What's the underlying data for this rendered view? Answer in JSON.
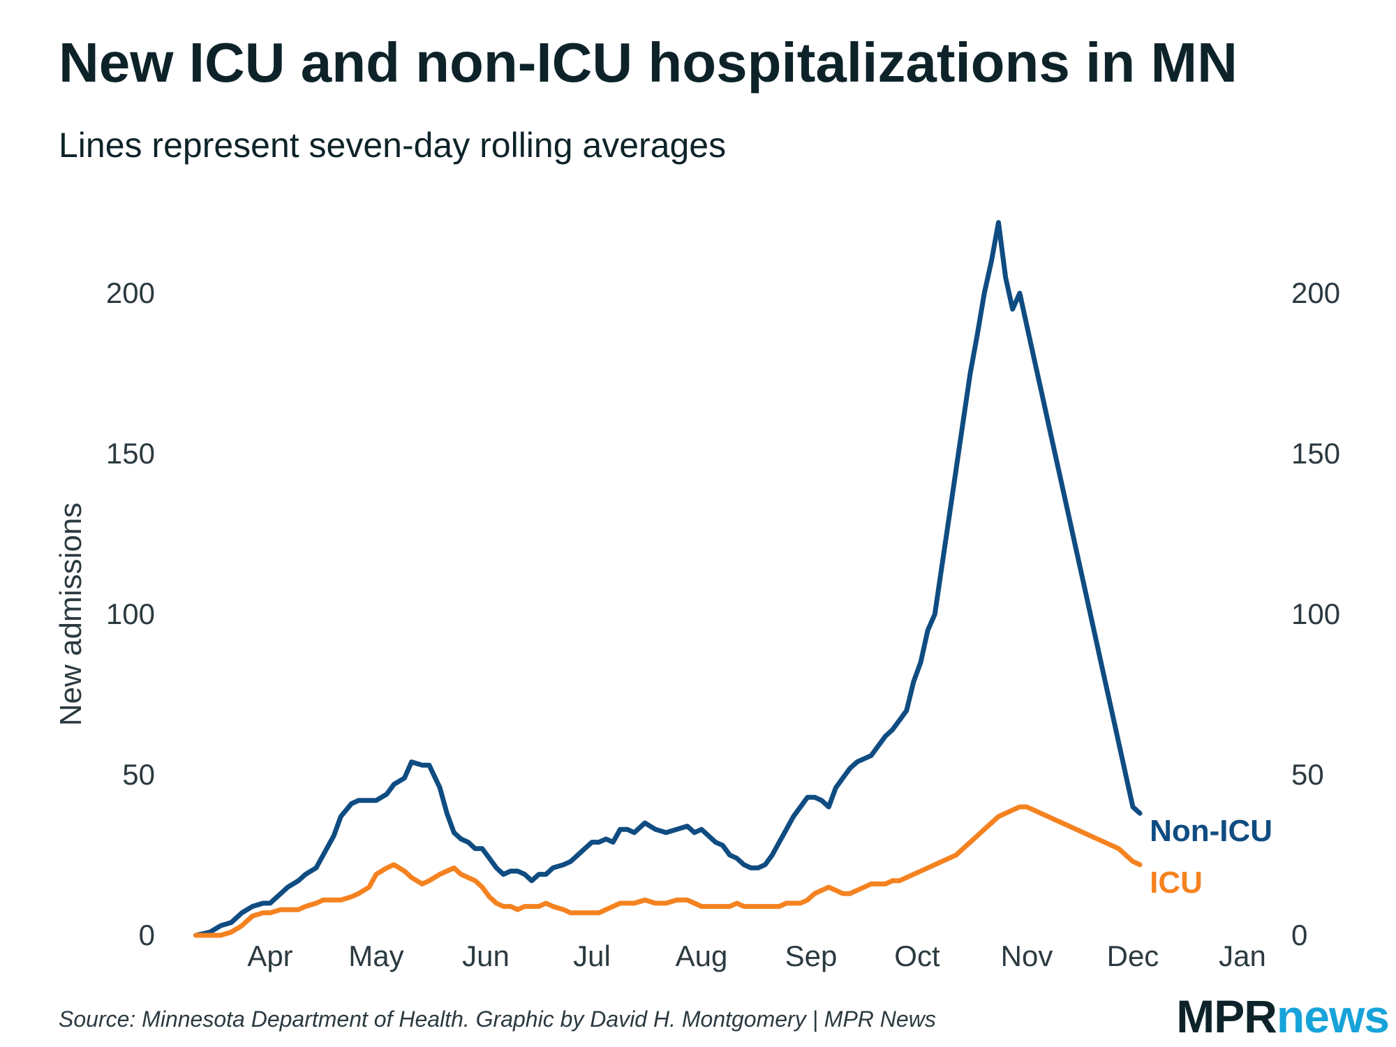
{
  "title": "New ICU and non-ICU hospitalizations in MN",
  "subtitle": "Lines represent seven-day rolling averages",
  "source": "Source: Minnesota Department of Health. Graphic by David H. Montgomery | MPR News",
  "logo": {
    "part1": "MPR",
    "part2": "news"
  },
  "colors": {
    "non_icu": "#0f4c81",
    "icu": "#f58220",
    "text": "#0d2329",
    "logo_accent": "#16a3d9"
  },
  "chart_data": {
    "type": "line",
    "title": "New ICU and non-ICU hospitalizations in MN",
    "subtitle": "Lines represent seven-day rolling averages",
    "ylabel": "New admissions",
    "xlabel": "",
    "ylim": [
      0,
      200
    ],
    "yticks": [
      0,
      50,
      100,
      150,
      200
    ],
    "x_ticks": [
      {
        "label": "Apr",
        "day": 0
      },
      {
        "label": "May",
        "day": 30
      },
      {
        "label": "Jun",
        "day": 61
      },
      {
        "label": "Jul",
        "day": 91
      },
      {
        "label": "Aug",
        "day": 122
      },
      {
        "label": "Sep",
        "day": 153
      },
      {
        "label": "Oct",
        "day": 183
      },
      {
        "label": "Nov",
        "day": 214
      },
      {
        "label": "Dec",
        "day": 244
      },
      {
        "label": "Jan",
        "day": 275
      }
    ],
    "xlim": [
      -21,
      280
    ],
    "legend": "direct labels at line ends",
    "series": [
      {
        "name": "Non-ICU",
        "x": [
          -21,
          -17,
          -14,
          -11,
          -8,
          -5,
          -2,
          0,
          3,
          5,
          8,
          10,
          13,
          15,
          18,
          20,
          23,
          25,
          28,
          30,
          33,
          35,
          38,
          40,
          43,
          45,
          48,
          50,
          52,
          54,
          56,
          58,
          60,
          62,
          64,
          66,
          68,
          70,
          72,
          74,
          76,
          78,
          80,
          83,
          85,
          87,
          89,
          91,
          93,
          95,
          97,
          99,
          101,
          103,
          106,
          109,
          112,
          115,
          118,
          120,
          122,
          124,
          126,
          128,
          130,
          132,
          134,
          136,
          138,
          140,
          142,
          144,
          146,
          148,
          150,
          152,
          154,
          156,
          158,
          160,
          162,
          164,
          166,
          168,
          170,
          172,
          174,
          176,
          178,
          180,
          182,
          184,
          186,
          188,
          190,
          192,
          194,
          196,
          198,
          200,
          202,
          204,
          206,
          208,
          210,
          212,
          214,
          216,
          218,
          220,
          222,
          224,
          226,
          228,
          230,
          232,
          234,
          236,
          238,
          240,
          241,
          242,
          243,
          244,
          246
        ],
        "values": [
          0,
          1,
          3,
          4,
          7,
          9,
          10,
          10,
          13,
          15,
          17,
          19,
          21,
          25,
          31,
          37,
          41,
          42,
          42,
          42,
          44,
          47,
          49,
          54,
          53,
          53,
          46,
          38,
          32,
          30,
          29,
          27,
          27,
          24,
          21,
          19,
          20,
          20,
          19,
          17,
          19,
          19,
          21,
          22,
          23,
          25,
          27,
          29,
          29,
          30,
          29,
          33,
          33,
          32,
          35,
          33,
          32,
          33,
          34,
          32,
          33,
          31,
          29,
          28,
          25,
          24,
          22,
          21,
          21,
          22,
          25,
          29,
          33,
          37,
          40,
          43,
          43,
          42,
          40,
          46,
          49,
          52,
          54,
          55,
          56,
          59,
          62,
          64,
          67,
          70,
          79,
          85,
          95,
          100,
          115,
          130,
          145,
          160,
          175,
          187,
          200,
          210,
          222,
          205,
          195,
          200,
          190,
          180,
          170,
          160,
          150,
          140,
          130,
          120,
          110,
          100,
          90,
          80,
          70,
          60,
          55,
          50,
          45,
          40,
          38
        ],
        "note": "x is days since Apr 1; values in admissions per day"
      },
      {
        "name": "ICU",
        "x": [
          -21,
          -17,
          -14,
          -11,
          -8,
          -5,
          -2,
          0,
          3,
          5,
          8,
          10,
          13,
          15,
          18,
          20,
          23,
          25,
          28,
          30,
          33,
          35,
          38,
          40,
          43,
          45,
          48,
          50,
          52,
          54,
          56,
          58,
          60,
          62,
          64,
          66,
          68,
          70,
          72,
          74,
          76,
          78,
          80,
          83,
          85,
          87,
          89,
          91,
          93,
          95,
          97,
          99,
          101,
          103,
          106,
          109,
          112,
          115,
          118,
          120,
          122,
          124,
          126,
          128,
          130,
          132,
          134,
          136,
          138,
          140,
          142,
          144,
          146,
          148,
          150,
          152,
          154,
          156,
          158,
          160,
          162,
          164,
          166,
          168,
          170,
          172,
          174,
          176,
          178,
          180,
          182,
          184,
          186,
          188,
          190,
          192,
          194,
          196,
          198,
          200,
          202,
          204,
          206,
          208,
          210,
          212,
          214,
          216,
          218,
          220,
          222,
          224,
          226,
          228,
          230,
          232,
          234,
          236,
          238,
          240,
          241,
          242,
          243,
          244,
          246
        ],
        "values": [
          0,
          0,
          0,
          1,
          3,
          6,
          7,
          7,
          8,
          8,
          8,
          9,
          10,
          11,
          11,
          11,
          12,
          13,
          15,
          19,
          21,
          22,
          20,
          18,
          16,
          17,
          19,
          20,
          21,
          19,
          18,
          17,
          15,
          12,
          10,
          9,
          9,
          8,
          9,
          9,
          9,
          10,
          9,
          8,
          7,
          7,
          7,
          7,
          7,
          8,
          9,
          10,
          10,
          10,
          11,
          10,
          10,
          11,
          11,
          10,
          9,
          9,
          9,
          9,
          9,
          10,
          9,
          9,
          9,
          9,
          9,
          9,
          10,
          10,
          10,
          11,
          13,
          14,
          15,
          14,
          13,
          13,
          14,
          15,
          16,
          16,
          16,
          17,
          17,
          18,
          19,
          20,
          21,
          22,
          23,
          24,
          25,
          27,
          29,
          31,
          33,
          35,
          37,
          38,
          39,
          40,
          40,
          39,
          38,
          37,
          36,
          35,
          34,
          33,
          32,
          31,
          30,
          29,
          28,
          27,
          26,
          25,
          24,
          23,
          22
        ],
        "note": "x is days since Apr 1; values in admissions per day"
      }
    ]
  }
}
